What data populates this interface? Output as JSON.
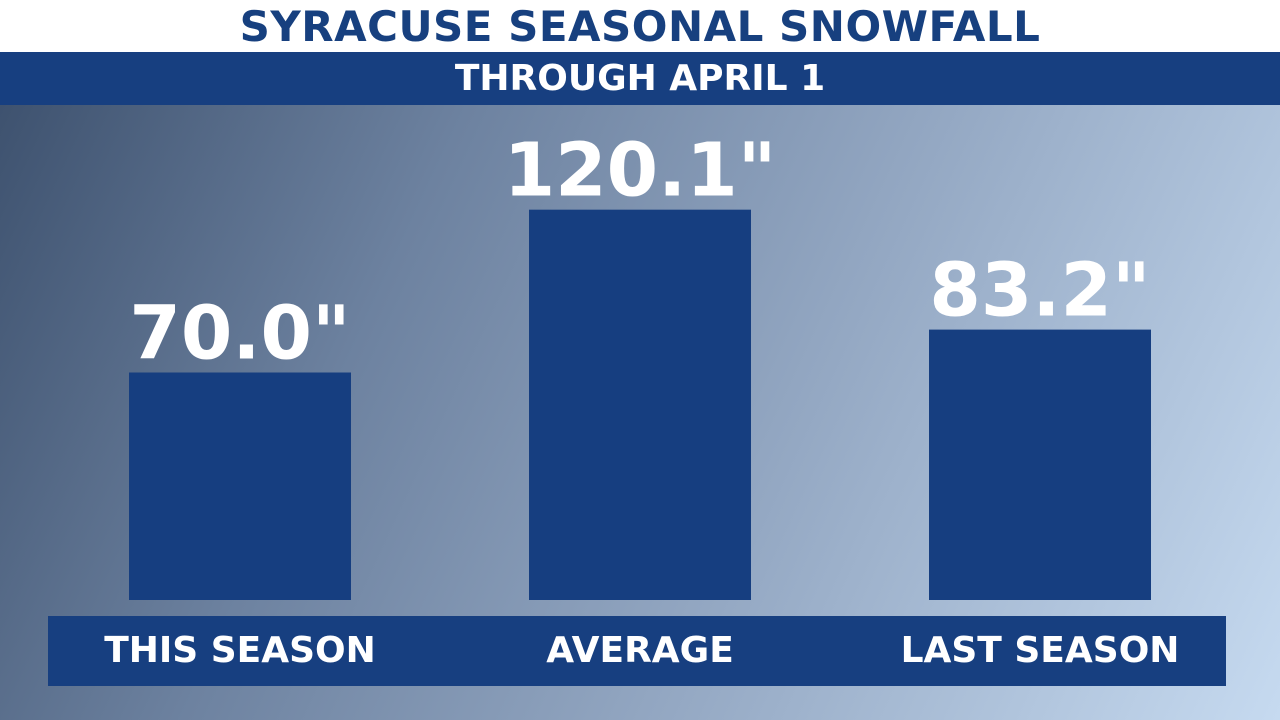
{
  "title": "SYRACUSE SEASONAL SNOWFALL",
  "subtitle": "THROUGH APRIL 1",
  "colors": {
    "title_text": "#17407f",
    "band": "#173f80",
    "bar": "#163e80",
    "label_text": "#ffffff"
  },
  "chart_data": {
    "type": "bar",
    "title": "SYRACUSE SEASONAL SNOWFALL",
    "subtitle": "THROUGH APRIL 1",
    "categories": [
      "THIS SEASON",
      "AVERAGE",
      "LAST SEASON"
    ],
    "values": [
      70.0,
      120.1,
      83.2
    ],
    "value_labels": [
      "70.0\"",
      "120.1\"",
      "83.2\""
    ],
    "unit": "inches",
    "xlabel": "",
    "ylabel": "",
    "grid": false,
    "legend": "none"
  }
}
